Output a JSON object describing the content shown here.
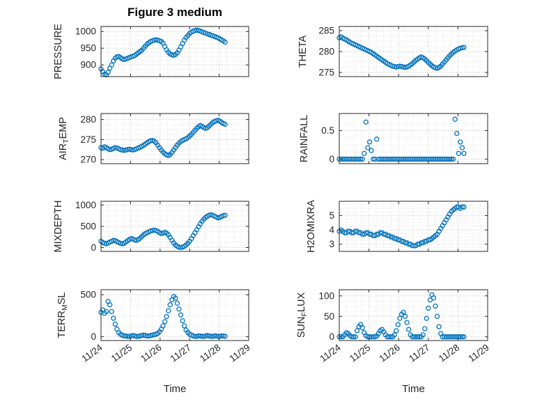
{
  "figure": {
    "title": "Figure 3 medium",
    "xlabel": "Time",
    "marker": "o",
    "marker_color": "#0072BD",
    "xticklabels": [
      "11/24",
      "11/25",
      "11/26",
      "11/27",
      "11/28",
      "11/29"
    ],
    "x_range_days": [
      0,
      5
    ]
  },
  "chart_data": [
    {
      "type": "scatter",
      "ylabel": "PRESSURE",
      "ylabel_segments": [
        {
          "text": "PRESSURE",
          "sub": false
        }
      ],
      "yticks": [
        900,
        950,
        1000
      ],
      "ylim": [
        865,
        1015
      ],
      "x_start": 0,
      "x_step": 0.06,
      "y": [
        888,
        880,
        872,
        870,
        878,
        890,
        900,
        912,
        920,
        924,
        925,
        922,
        918,
        916,
        918,
        920,
        922,
        924,
        926,
        928,
        932,
        936,
        940,
        944,
        950,
        956,
        962,
        966,
        970,
        972,
        974,
        975,
        974,
        972,
        970,
        965,
        955,
        945,
        938,
        933,
        930,
        929,
        931,
        936,
        944,
        954,
        964,
        974,
        982,
        988,
        994,
        998,
        1001,
        1003,
        1004,
        1003,
        1001,
        999,
        997,
        995,
        993,
        991,
        989,
        987,
        985,
        983,
        981,
        978,
        975,
        972,
        968
      ]
    },
    {
      "type": "scatter",
      "ylabel": "THETA",
      "ylabel_segments": [
        {
          "text": "THETA",
          "sub": false
        }
      ],
      "yticks": [
        275,
        280,
        285
      ],
      "ylim": [
        274,
        286
      ],
      "x_start": 0,
      "x_step": 0.06,
      "y": [
        283.3,
        283.5,
        283.2,
        283.0,
        282.8,
        282.5,
        282.2,
        282.0,
        281.8,
        281.6,
        281.4,
        281.2,
        281.0,
        280.8,
        280.6,
        280.4,
        280.2,
        280.0,
        279.8,
        279.5,
        279.2,
        278.9,
        278.6,
        278.3,
        278.0,
        277.7,
        277.4,
        277.1,
        276.9,
        276.7,
        276.5,
        276.4,
        276.3,
        276.4,
        276.5,
        276.4,
        276.3,
        276.2,
        276.3,
        276.5,
        276.8,
        277.1,
        277.5,
        277.9,
        278.2,
        278.5,
        278.7,
        278.5,
        278.2,
        277.8,
        277.4,
        277.0,
        276.6,
        276.3,
        276.1,
        276.0,
        276.2,
        276.5,
        277.0,
        277.5,
        278.0,
        278.5,
        279.0,
        279.4,
        279.8,
        280.1,
        280.4,
        280.6,
        280.8,
        280.9,
        281.0
      ]
    },
    {
      "type": "scatter",
      "ylabel": "AIR_TEMP",
      "ylabel_segments": [
        {
          "text": "AIR",
          "sub": false
        },
        {
          "text": "T",
          "sub": true
        },
        {
          "text": "EMP",
          "sub": false
        }
      ],
      "yticks": [
        270,
        275,
        280
      ],
      "ylim": [
        269,
        281.5
      ],
      "x_start": 0,
      "x_step": 0.06,
      "y": [
        273.0,
        272.8,
        273.2,
        273.0,
        272.7,
        272.5,
        272.6,
        272.8,
        273.0,
        272.9,
        272.7,
        272.5,
        272.4,
        272.3,
        272.4,
        272.5,
        272.6,
        272.5,
        272.4,
        272.5,
        272.7,
        272.9,
        273.1,
        273.3,
        273.6,
        273.9,
        274.2,
        274.5,
        274.7,
        274.8,
        274.6,
        274.2,
        273.6,
        273.0,
        272.4,
        271.9,
        271.5,
        271.2,
        271.0,
        271.3,
        271.8,
        272.4,
        273.0,
        273.6,
        274.1,
        274.5,
        274.8,
        275.0,
        275.2,
        275.5,
        275.9,
        276.3,
        276.8,
        277.3,
        277.8,
        278.2,
        278.5,
        278.3,
        278.0,
        277.8,
        278.0,
        278.4,
        278.8,
        279.2,
        279.5,
        279.7,
        279.8,
        279.6,
        279.3,
        279.0,
        278.8
      ]
    },
    {
      "type": "scatter",
      "ylabel": "RAINFALL",
      "ylabel_segments": [
        {
          "text": "RAINFALL",
          "sub": false
        }
      ],
      "yticks": [
        0,
        0.5
      ],
      "ylim": [
        -0.08,
        0.8
      ],
      "x_start": 0,
      "x_step": 0.06,
      "y": [
        0,
        0,
        0,
        0,
        0,
        0,
        0,
        0,
        0,
        0,
        0,
        0,
        0,
        0,
        0.1,
        0.65,
        0.2,
        0.3,
        0.15,
        0,
        0,
        0.35,
        0,
        0,
        0,
        0,
        0,
        0,
        0,
        0,
        0,
        0,
        0,
        0,
        0,
        0,
        0,
        0,
        0,
        0,
        0,
        0,
        0,
        0,
        0,
        0,
        0,
        0,
        0,
        0,
        0,
        0,
        0,
        0,
        0,
        0,
        0,
        0,
        0,
        0,
        0,
        0,
        0,
        0,
        0,
        0.7,
        0.45,
        0.1,
        0.3,
        0.2,
        0.1
      ]
    },
    {
      "type": "scatter",
      "ylabel": "MIXDEPTH",
      "ylabel_segments": [
        {
          "text": "MIXDEPTH",
          "sub": false
        }
      ],
      "yticks": [
        0,
        500,
        1000
      ],
      "ylim": [
        -90,
        1090
      ],
      "x_start": 0,
      "x_step": 0.06,
      "y": [
        150,
        120,
        100,
        90,
        110,
        130,
        150,
        170,
        160,
        140,
        120,
        100,
        90,
        100,
        130,
        160,
        190,
        210,
        200,
        180,
        170,
        190,
        220,
        260,
        300,
        330,
        350,
        370,
        390,
        400,
        410,
        400,
        380,
        350,
        330,
        340,
        360,
        340,
        300,
        240,
        170,
        110,
        60,
        30,
        10,
        5,
        10,
        30,
        60,
        100,
        150,
        210,
        280,
        350,
        420,
        490,
        560,
        620,
        670,
        710,
        740,
        760,
        770,
        760,
        740,
        720,
        700,
        710,
        730,
        750,
        760
      ]
    },
    {
      "type": "scatter",
      "ylabel": "H2OMIXRA",
      "ylabel_segments": [
        {
          "text": "H2OMIXRA",
          "sub": false
        }
      ],
      "yticks": [
        3,
        4,
        5
      ],
      "ylim": [
        2.5,
        6.0
      ],
      "x_start": 0,
      "x_step": 0.06,
      "y": [
        3.9,
        4.0,
        3.9,
        3.8,
        3.8,
        3.9,
        3.9,
        3.8,
        3.8,
        3.9,
        3.9,
        3.8,
        3.8,
        3.7,
        3.7,
        3.8,
        3.8,
        3.7,
        3.7,
        3.6,
        3.6,
        3.7,
        3.7,
        3.8,
        3.8,
        3.7,
        3.7,
        3.6,
        3.6,
        3.5,
        3.5,
        3.4,
        3.4,
        3.3,
        3.3,
        3.2,
        3.2,
        3.1,
        3.1,
        3.0,
        3.0,
        2.9,
        2.9,
        2.9,
        3.0,
        3.0,
        3.1,
        3.1,
        3.2,
        3.2,
        3.3,
        3.3,
        3.4,
        3.5,
        3.6,
        3.7,
        3.9,
        4.1,
        4.3,
        4.5,
        4.7,
        4.9,
        5.1,
        5.3,
        5.4,
        5.5,
        5.6,
        5.6,
        5.5,
        5.6,
        5.6
      ]
    },
    {
      "type": "scatter",
      "ylabel": "TERR_MSL",
      "ylabel_segments": [
        {
          "text": "TERR",
          "sub": false
        },
        {
          "text": "M",
          "sub": true
        },
        {
          "text": "SL",
          "sub": false
        }
      ],
      "yticks": [
        0,
        500
      ],
      "ylim": [
        -45,
        560
      ],
      "x_start": 0,
      "x_step": 0.06,
      "y": [
        290,
        320,
        280,
        300,
        420,
        380,
        300,
        220,
        150,
        90,
        50,
        30,
        20,
        10,
        10,
        5,
        5,
        10,
        15,
        10,
        5,
        5,
        10,
        15,
        20,
        15,
        10,
        10,
        15,
        20,
        25,
        30,
        40,
        60,
        90,
        130,
        180,
        240,
        310,
        380,
        440,
        480,
        460,
        400,
        330,
        260,
        190,
        130,
        80,
        50,
        30,
        20,
        10,
        5,
        5,
        10,
        10,
        5,
        5,
        10,
        15,
        10,
        5,
        5,
        10,
        10,
        5,
        5,
        10,
        10,
        5
      ]
    },
    {
      "type": "scatter",
      "ylabel": "SUN_FLUX",
      "ylabel_segments": [
        {
          "text": "SUN",
          "sub": false
        },
        {
          "text": "F",
          "sub": true
        },
        {
          "text": "LUX",
          "sub": false
        }
      ],
      "yticks": [
        0,
        50,
        100
      ],
      "ylim": [
        -9,
        115
      ],
      "x_start": 0,
      "x_step": 0.06,
      "y": [
        0,
        0,
        0,
        5,
        10,
        8,
        3,
        0,
        0,
        0,
        15,
        25,
        30,
        22,
        10,
        3,
        0,
        0,
        0,
        0,
        0,
        2,
        8,
        15,
        18,
        12,
        5,
        0,
        0,
        0,
        0,
        5,
        15,
        30,
        45,
        55,
        60,
        50,
        35,
        18,
        5,
        0,
        0,
        0,
        0,
        0,
        0,
        5,
        20,
        45,
        70,
        90,
        103,
        95,
        75,
        50,
        25,
        8,
        0,
        0,
        0,
        0,
        0,
        0,
        0,
        0,
        0,
        0,
        0,
        0,
        0
      ]
    }
  ]
}
